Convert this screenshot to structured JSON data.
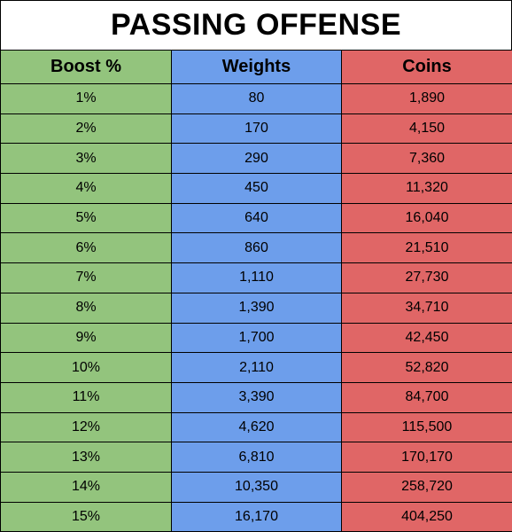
{
  "title": "PASSING OFFENSE",
  "colors": {
    "boost_column": "#93c47d",
    "weights_column": "#6d9eeb",
    "coins_column": "#e06666"
  },
  "columns": [
    "Boost %",
    "Weights",
    "Coins"
  ],
  "rows": [
    [
      "1%",
      "80",
      "1,890"
    ],
    [
      "2%",
      "170",
      "4,150"
    ],
    [
      "3%",
      "290",
      "7,360"
    ],
    [
      "4%",
      "450",
      "11,320"
    ],
    [
      "5%",
      "640",
      "16,040"
    ],
    [
      "6%",
      "860",
      "21,510"
    ],
    [
      "7%",
      "1,110",
      "27,730"
    ],
    [
      "8%",
      "1,390",
      "34,710"
    ],
    [
      "9%",
      "1,700",
      "42,450"
    ],
    [
      "10%",
      "2,110",
      "52,820"
    ],
    [
      "11%",
      "3,390",
      "84,700"
    ],
    [
      "12%",
      "4,620",
      "115,500"
    ],
    [
      "13%",
      "6,810",
      "170,170"
    ],
    [
      "14%",
      "10,350",
      "258,720"
    ],
    [
      "15%",
      "16,170",
      "404,250"
    ]
  ]
}
